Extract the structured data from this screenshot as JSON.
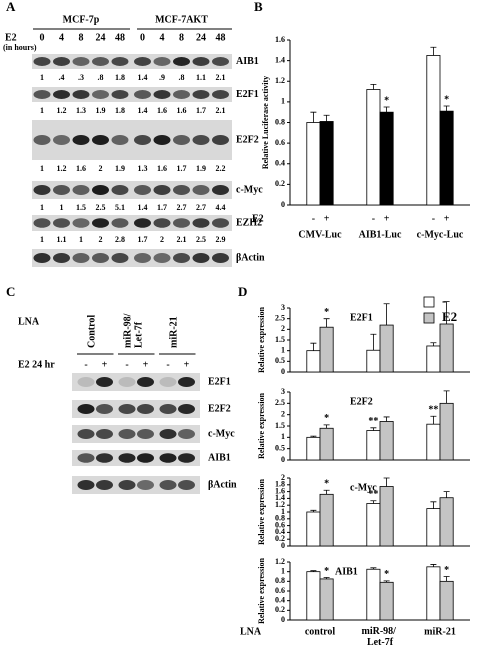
{
  "panel_labels": [
    "A",
    "B",
    "C",
    "D"
  ],
  "panel_a": {
    "groups": [
      "MCF-7p",
      "MCF-7AKT"
    ],
    "treatment": "E2",
    "treatment_unit": "(in hours)",
    "timepoints": [
      "0",
      "4",
      "8",
      "24",
      "48",
      "0",
      "4",
      "8",
      "24",
      "48"
    ],
    "blots": [
      {
        "label": "AIB1",
        "quant": [
          "1",
          ".4",
          ".3",
          ".8",
          "1.8",
          "1.4",
          ".9",
          ".8",
          "1.1",
          "2.1"
        ]
      },
      {
        "label": "E2F1",
        "quant": [
          "1",
          "1.2",
          "1.3",
          "1.9",
          "1.8",
          "1.4",
          "1.6",
          "1.6",
          "1.7",
          "2.1"
        ]
      },
      {
        "label": "E2F2",
        "quant": [
          "1",
          "1.2",
          "1.6",
          "2",
          "1.9",
          "1.3",
          "1.6",
          "1.7",
          "1.9",
          "2.2"
        ]
      },
      {
        "label": "c-Myc",
        "quant": [
          "1",
          "1",
          "1.5",
          "2.5",
          "5.1",
          "1.4",
          "1.7",
          "2.7",
          "2.7",
          "4.4"
        ]
      },
      {
        "label": "EZH2",
        "quant": [
          "1",
          "1.1",
          "1",
          "2",
          "2.8",
          "1.7",
          "2",
          "2.1",
          "2.5",
          "2.9"
        ]
      },
      {
        "label": "βActin"
      }
    ]
  },
  "panel_c": {
    "lna_label": "LNA",
    "conditions": [
      "Control",
      "miR-98/ Let-7f",
      "miR-21"
    ],
    "treatment": "E2 24 hr",
    "signs": [
      "-",
      "+",
      "-",
      "+",
      "-",
      "+"
    ],
    "blots": [
      "E2F1",
      "E2F2",
      "c-Myc",
      "AIB1",
      "βActin"
    ]
  },
  "chart_data": [
    {
      "type": "bar",
      "ylabel": "Relative Luciferase activity",
      "treatment": "E2",
      "categories": [
        "CMV-Luc",
        "AIB1-Luc",
        "c-Myc-Luc"
      ],
      "series": [
        {
          "name": "-",
          "color": "#ffffff",
          "values": [
            0.8,
            1.12,
            1.45
          ],
          "errors": [
            0.1,
            0.05,
            0.08
          ]
        },
        {
          "name": "+",
          "color": "#000000",
          "values": [
            0.81,
            0.9,
            0.91
          ],
          "errors": [
            0.06,
            0.05,
            0.05
          ]
        }
      ],
      "ylim": [
        0,
        1.6
      ],
      "yticks": [
        0,
        0.2,
        0.4,
        0.6,
        0.8,
        1,
        1.2,
        1.4,
        1.6
      ],
      "annotations": [
        {
          "text": "*",
          "category": 1,
          "series": 1
        },
        {
          "text": "*",
          "category": 2,
          "series": 1
        }
      ]
    },
    {
      "type": "bar",
      "title": "E2F1",
      "ylabel": "Relative expression",
      "categories": [
        null,
        null,
        null
      ],
      "series": [
        {
          "name": "-",
          "color": "#ffffff",
          "values": [
            1,
            1.02,
            1.22
          ],
          "errors": [
            0.35,
            0.75,
            0.15
          ]
        },
        {
          "name": "E2",
          "color": "#c4c4c4",
          "values": [
            2.1,
            2.2,
            2.25
          ],
          "errors": [
            0.4,
            1,
            1.05
          ]
        }
      ],
      "ylim": [
        0,
        3
      ],
      "yticks": [
        0,
        0.5,
        1,
        1.5,
        2,
        2.5,
        3
      ],
      "annotations": [
        {
          "text": "*",
          "category": 0,
          "series": 1
        }
      ]
    },
    {
      "type": "bar",
      "title": "E2F2",
      "ylabel": "Relative expression",
      "categories": [
        null,
        null,
        null
      ],
      "series": [
        {
          "name": "-",
          "color": "#ffffff",
          "values": [
            1,
            1.3,
            1.58
          ],
          "errors": [
            0.05,
            0.12,
            0.35
          ]
        },
        {
          "name": "E2",
          "color": "#c4c4c4",
          "values": [
            1.4,
            1.7,
            2.5
          ],
          "errors": [
            0.15,
            0.2,
            0.55
          ]
        }
      ],
      "ylim": [
        0,
        3
      ],
      "yticks": [
        0,
        0.5,
        1,
        1.5,
        2,
        2.5,
        3
      ],
      "annotations": [
        {
          "text": "*",
          "category": 0,
          "series": 1
        },
        {
          "text": "**",
          "category": 1,
          "series": 0
        },
        {
          "text": "**",
          "category": 2,
          "series": 0
        }
      ]
    },
    {
      "type": "bar",
      "title": "c-Myc",
      "ylabel": "Relative expression",
      "categories": [
        null,
        null,
        null
      ],
      "series": [
        {
          "name": "-",
          "color": "#ffffff",
          "values": [
            1,
            1.25,
            1.1
          ],
          "errors": [
            0.05,
            0.08,
            0.2
          ]
        },
        {
          "name": "E2",
          "color": "#c4c4c4",
          "values": [
            1.52,
            1.75,
            1.42
          ],
          "errors": [
            0.12,
            0.25,
            0.18
          ]
        }
      ],
      "ylim": [
        0,
        2
      ],
      "yticks": [
        0,
        0.2,
        0.4,
        0.6,
        0.8,
        1,
        1.2,
        1.4,
        1.6,
        1.8,
        2
      ],
      "annotations": [
        {
          "text": "*",
          "category": 0,
          "series": 1
        },
        {
          "text": "**",
          "category": 1,
          "series": 0
        }
      ]
    },
    {
      "type": "bar",
      "title": "AIB1",
      "ylabel": "Relative expression",
      "xlabel": "LNA",
      "categories": [
        "control",
        "miR-98/ Let-7f",
        "miR-21"
      ],
      "series": [
        {
          "name": "-",
          "color": "#ffffff",
          "values": [
            1,
            1.05,
            1.1
          ],
          "errors": [
            0.02,
            0.03,
            0.05
          ]
        },
        {
          "name": "E2",
          "color": "#c4c4c4",
          "values": [
            0.85,
            0.78,
            0.8
          ],
          "errors": [
            0.03,
            0.03,
            0.1
          ]
        }
      ],
      "ylim": [
        0,
        1.2
      ],
      "yticks": [
        0,
        0.2,
        0.4,
        0.6,
        0.8,
        1,
        1.2
      ],
      "annotations": [
        {
          "text": "*",
          "category": 0,
          "series": 1
        },
        {
          "text": "*",
          "category": 1,
          "series": 1
        },
        {
          "text": "*",
          "category": 2,
          "series": 1
        }
      ]
    }
  ]
}
